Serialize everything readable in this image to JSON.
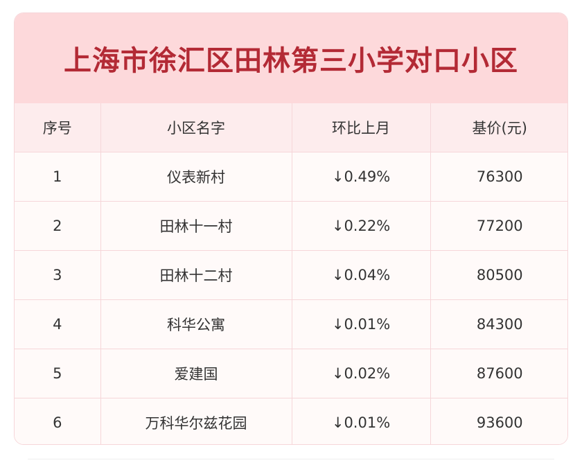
{
  "title": "上海市徐汇区田林第三小学对口小区",
  "headers": {
    "index": "序号",
    "name": "小区名字",
    "change": "环比上月",
    "price": "基价(元)"
  },
  "rows": [
    {
      "index": "1",
      "name": "仪表新村",
      "change": "↓0.49%",
      "price": "76300"
    },
    {
      "index": "2",
      "name": "田林十一村",
      "change": "↓0.22%",
      "price": "77200"
    },
    {
      "index": "3",
      "name": "田林十二村",
      "change": "↓0.04%",
      "price": "80500"
    },
    {
      "index": "4",
      "name": "科华公寓",
      "change": "↓0.01%",
      "price": "84300"
    },
    {
      "index": "5",
      "name": "爱建国",
      "change": "↓0.02%",
      "price": "87600"
    },
    {
      "index": "6",
      "name": "万科华尔兹花园",
      "change": "↓0.01%",
      "price": "93600"
    }
  ],
  "colors": {
    "title_background": "#fdd9db",
    "title_text": "#b32a35",
    "header_background": "#fdeced",
    "border": "#f6d6d9"
  }
}
